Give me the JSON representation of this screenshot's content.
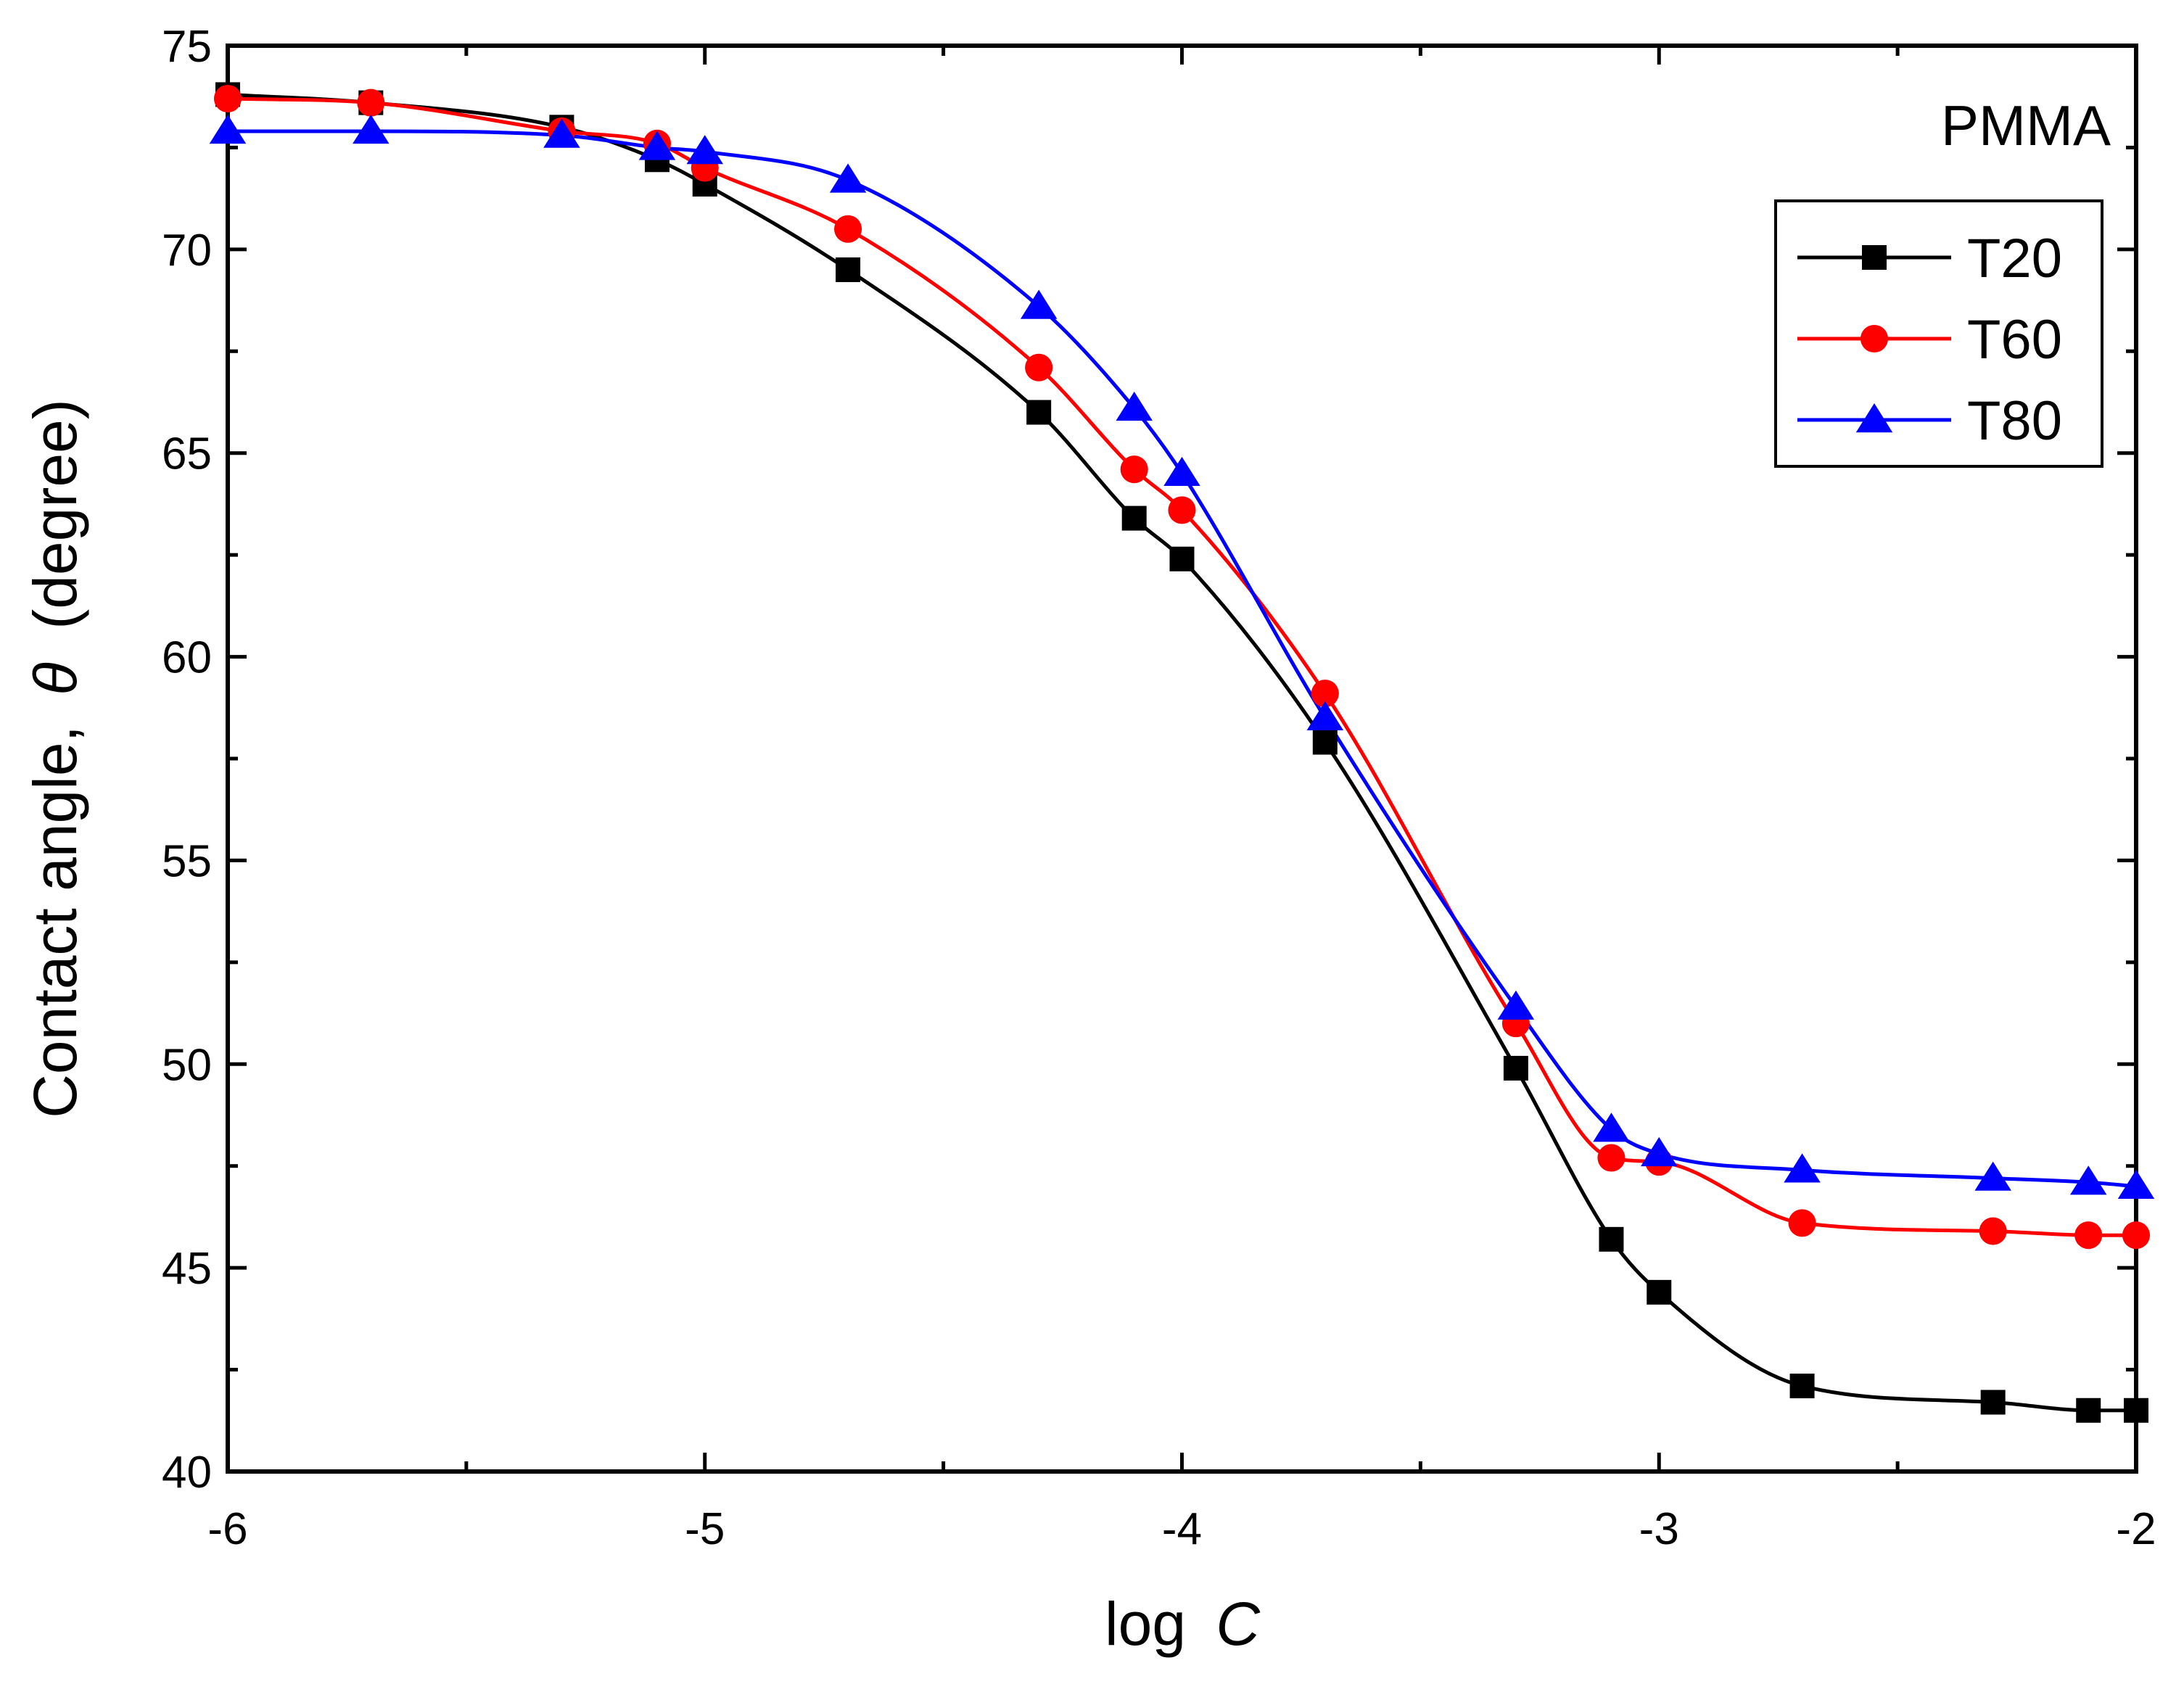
{
  "chart_data": {
    "type": "line",
    "title": "",
    "annotation": "PMMA",
    "xlabel": "log",
    "xlabel_var": "C",
    "ylabel": "Contact angle,",
    "ylabel_var": "θ",
    "ylabel_unit": "(degree)",
    "xlim": [
      -6,
      -2
    ],
    "ylim": [
      40,
      75
    ],
    "xticks": [
      -6,
      -5,
      -4,
      -3,
      -2
    ],
    "yticks": [
      40,
      45,
      50,
      55,
      60,
      65,
      70,
      75
    ],
    "legend_position": "top-right",
    "series": [
      {
        "name": "T20",
        "color": "#000000",
        "marker": "square",
        "x": [
          -6,
          -5.7,
          -5.3,
          -5.1,
          -5,
          -4.7,
          -4.3,
          -4.1,
          -4,
          -3.7,
          -3.3,
          -3.1,
          -3,
          -2.7,
          -2.3,
          -2.1,
          -2
        ],
        "y": [
          73.8,
          73.6,
          73.0,
          72.2,
          71.6,
          69.5,
          66.0,
          63.4,
          62.4,
          57.9,
          49.9,
          45.7,
          44.4,
          42.1,
          41.7,
          41.5,
          41.5
        ]
      },
      {
        "name": "T60",
        "color": "#ff0000",
        "marker": "circle",
        "x": [
          -6,
          -5.7,
          -5.3,
          -5.1,
          -5,
          -4.7,
          -4.3,
          -4.1,
          -4,
          -3.7,
          -3.3,
          -3.1,
          -3,
          -2.7,
          -2.3,
          -2.1,
          -2
        ],
        "y": [
          73.7,
          73.6,
          72.9,
          72.6,
          72.0,
          70.5,
          67.1,
          64.6,
          63.6,
          59.1,
          51.0,
          47.7,
          47.6,
          46.1,
          45.9,
          45.8,
          45.8
        ]
      },
      {
        "name": "T80",
        "color": "#0000ff",
        "marker": "triangle",
        "x": [
          -6,
          -5.7,
          -5.3,
          -5.1,
          -5,
          -4.7,
          -4.3,
          -4.1,
          -4,
          -3.7,
          -3.3,
          -3.1,
          -3,
          -2.7,
          -2.3,
          -2.1,
          -2
        ],
        "y": [
          72.9,
          72.9,
          72.8,
          72.5,
          72.4,
          71.7,
          68.6,
          66.1,
          64.5,
          58.5,
          51.4,
          48.4,
          47.8,
          47.4,
          47.2,
          47.1,
          47.0
        ]
      }
    ]
  }
}
